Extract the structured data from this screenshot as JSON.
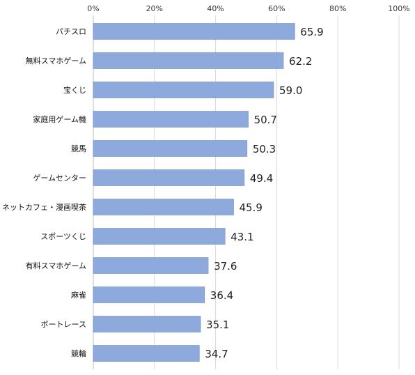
{
  "chart_data": {
    "type": "bar",
    "orientation": "horizontal",
    "categories": [
      "パチスロ",
      "無料スマホゲーム",
      "宝くじ",
      "家庭用ゲーム機",
      "競馬",
      "ゲームセンター",
      "ネットカフェ・漫画喫茶",
      "スポーツくじ",
      "有料スマホゲーム",
      "麻雀",
      "ボートレース",
      "競輪"
    ],
    "values": [
      65.9,
      62.2,
      59.0,
      50.7,
      50.3,
      49.4,
      45.9,
      43.1,
      37.6,
      36.4,
      35.1,
      34.7
    ],
    "value_labels": [
      "65.9",
      "62.2",
      "59.0",
      "50.7",
      "50.3",
      "49.4",
      "45.9",
      "43.1",
      "37.6",
      "36.4",
      "35.1",
      "34.7"
    ],
    "xlim": [
      0,
      100
    ],
    "x_ticks": [
      0,
      20,
      40,
      60,
      80,
      100
    ],
    "x_tick_labels": [
      "0%",
      "20%",
      "40%",
      "60%",
      "80%",
      "100%"
    ],
    "x_axis_position": "top",
    "grid": true,
    "colors": {
      "bar_fill": "#8EA9DB",
      "bar_stroke": "#6F8FC9",
      "grid": "#D9D9D9",
      "axis": "#BFBFBF"
    }
  }
}
